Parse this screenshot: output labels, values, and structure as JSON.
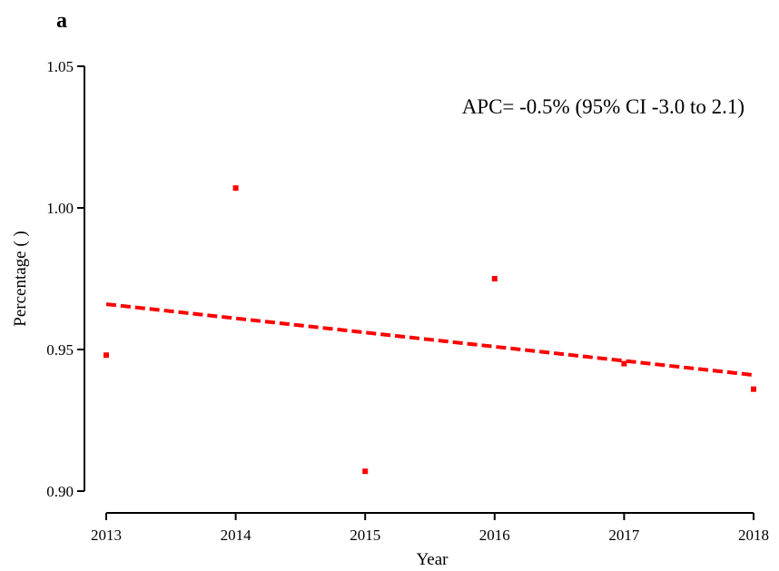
{
  "chart_data": {
    "type": "scatter",
    "panel_label": "a",
    "annotation": "APC= -0.5% (95% CI -3.0 to 2.1)",
    "xlabel": "Year",
    "ylabel": "Percentage (   )",
    "x_ticks": [
      "2013",
      "2014",
      "2015",
      "2016",
      "2017",
      "2018"
    ],
    "y_ticks": [
      "0.90",
      "0.95",
      "1.00",
      "1.05"
    ],
    "xlim": [
      2013,
      2018
    ],
    "ylim": [
      0.9,
      1.05
    ],
    "grid": false,
    "series": [
      {
        "type": "scatter",
        "color": "#ff0000",
        "points": [
          {
            "x": 2013,
            "y": 0.948
          },
          {
            "x": 2014,
            "y": 1.007
          },
          {
            "x": 2015,
            "y": 0.907
          },
          {
            "x": 2016,
            "y": 0.975
          },
          {
            "x": 2017,
            "y": 0.945
          },
          {
            "x": 2018,
            "y": 0.936
          }
        ]
      },
      {
        "type": "line",
        "style": "dashed",
        "color": "#ff0000",
        "points": [
          {
            "x": 2013,
            "y": 0.966
          },
          {
            "x": 2018,
            "y": 0.941
          }
        ]
      }
    ]
  }
}
